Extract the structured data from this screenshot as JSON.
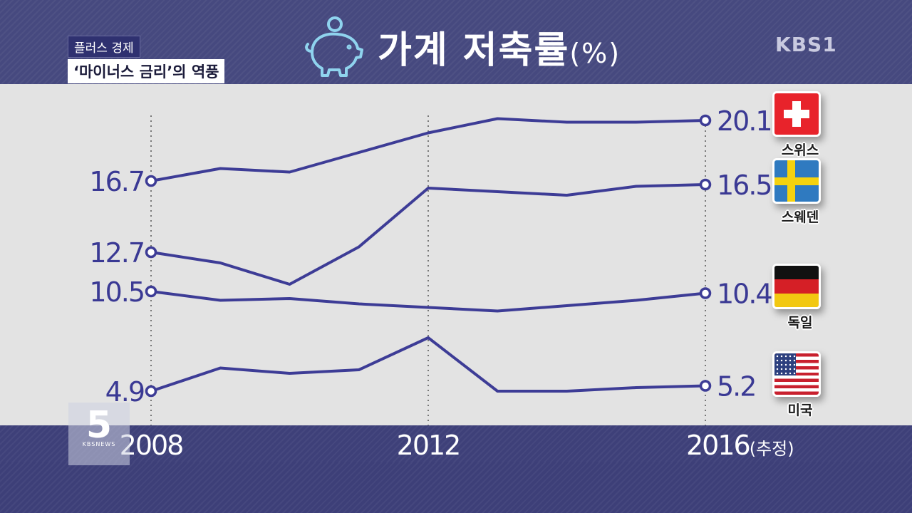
{
  "news_tag": {
    "category": "플러스 경제",
    "headline": "‘마이너스 금리’의 역풍"
  },
  "title": {
    "main": "가계 저축률",
    "unit": "(%)"
  },
  "broadcaster": "KBS1",
  "channel": {
    "number": "5",
    "sub": "KBSNEWS"
  },
  "colors": {
    "line": "#3d3c96",
    "plot_bg": "#e3e3e3",
    "band": "#3f4179",
    "label": "#3a3994"
  },
  "chart_data": {
    "type": "line",
    "x": [
      2008,
      2009,
      2010,
      2011,
      2012,
      2013,
      2014,
      2015,
      2016
    ],
    "x_tick_labels": [
      {
        "year": 2008,
        "text": "2008",
        "suffix": ""
      },
      {
        "year": 2012,
        "text": "2012",
        "suffix": ""
      },
      {
        "year": 2016,
        "text": "2016",
        "suffix": "(추정)"
      }
    ],
    "grid": "vertical dotted at 2008, 2012, 2016",
    "series": [
      {
        "name": "스위스",
        "flag": "swiss-flag-icon",
        "start_label": "16.7",
        "end_label": "20.1",
        "values": [
          16.7,
          17.4,
          17.2,
          18.3,
          19.4,
          20.2,
          20.0,
          20.0,
          20.1
        ]
      },
      {
        "name": "스웨덴",
        "flag": "swedish-flag-icon",
        "start_label": "12.7",
        "end_label": "16.5",
        "values": [
          12.7,
          12.1,
          10.9,
          13.0,
          16.3,
          16.1,
          15.9,
          16.4,
          16.5
        ]
      },
      {
        "name": "독일",
        "flag": "german-flag-icon",
        "start_label": "10.5",
        "end_label": "10.4",
        "values": [
          10.5,
          10.0,
          10.1,
          9.8,
          9.6,
          9.4,
          9.7,
          10.0,
          10.4
        ]
      },
      {
        "name": "미국",
        "flag": "us-flag-icon",
        "start_label": "4.9",
        "end_label": "5.2",
        "values": [
          4.9,
          6.2,
          5.9,
          6.1,
          7.9,
          4.9,
          4.9,
          5.1,
          5.2
        ]
      }
    ]
  }
}
